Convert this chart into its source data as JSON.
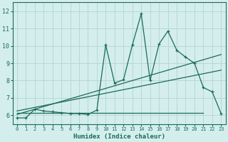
{
  "title": "",
  "xlabel": "Humidex (Indice chaleur)",
  "ylabel": "",
  "bg_color": "#d4eeed",
  "grid_color": "#b8d8d4",
  "line_color": "#1a6b5a",
  "xlim": [
    -0.5,
    23.5
  ],
  "ylim": [
    5.5,
    12.5
  ],
  "xticks": [
    0,
    1,
    2,
    3,
    4,
    5,
    6,
    7,
    8,
    9,
    10,
    11,
    12,
    13,
    14,
    15,
    16,
    17,
    18,
    19,
    20,
    21,
    22,
    23
  ],
  "yticks": [
    6,
    7,
    8,
    9,
    10,
    11,
    12
  ],
  "data_line": {
    "x": [
      0,
      1,
      2,
      3,
      4,
      5,
      6,
      7,
      8,
      9,
      10,
      11,
      12,
      13,
      14,
      15,
      16,
      17,
      18,
      19,
      20,
      21,
      22,
      23
    ],
    "y": [
      5.85,
      5.85,
      6.35,
      6.25,
      6.2,
      6.15,
      6.1,
      6.1,
      6.05,
      6.3,
      10.05,
      7.85,
      8.05,
      10.05,
      11.85,
      8.0,
      10.1,
      10.85,
      9.75,
      9.35,
      9.0,
      7.6,
      7.35,
      6.1
    ]
  },
  "trend_line1": {
    "x": [
      0,
      23
    ],
    "y": [
      6.05,
      9.5
    ]
  },
  "trend_line2": {
    "x": [
      0,
      23
    ],
    "y": [
      6.25,
      8.6
    ]
  },
  "flat_line": {
    "x": [
      0,
      21
    ],
    "y": [
      6.15,
      6.15
    ]
  }
}
